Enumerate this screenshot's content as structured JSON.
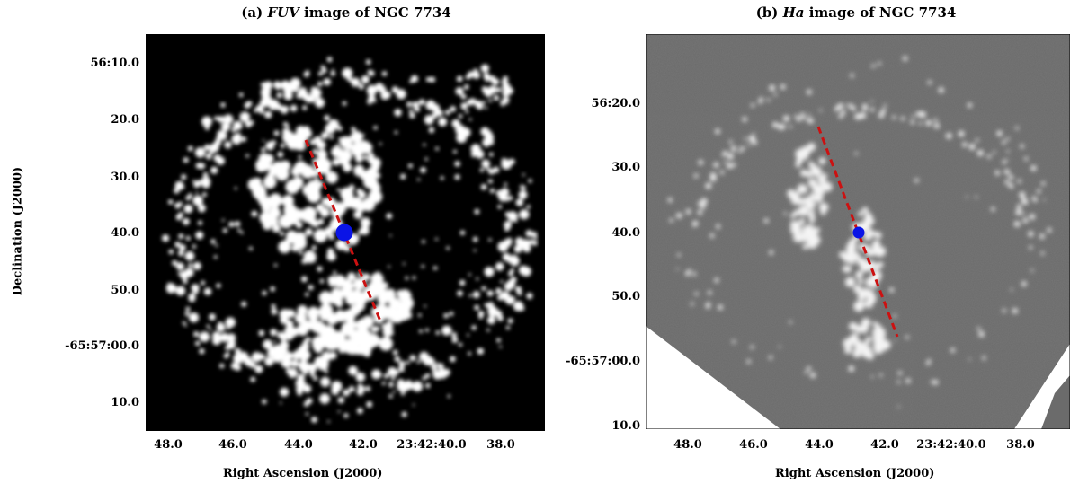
{
  "panel_a": {
    "title_prefix": "(a) ",
    "title_band": "FUV",
    "title_suffix": " image of NGC 7734",
    "y_ticks": [
      "56:10.0",
      "20.0",
      "30.0",
      "40.0",
      "50.0",
      "-65:57:00.0",
      "10.0"
    ],
    "x_ticks": [
      "48.0",
      "46.0",
      "44.0",
      "42.0",
      "23:42:40.0",
      "38.0"
    ],
    "xlabel": "Right Ascension (J2000)",
    "ylabel": "Declination (J2000)"
  },
  "panel_b": {
    "title_prefix": "(b) ",
    "title_band": "Ha",
    "title_suffix": " image of NGC 7734",
    "y_ticks": [
      "56:20.0",
      "30.0",
      "40.0",
      "50.0",
      "-65:57:00.0",
      "10.0"
    ],
    "x_ticks": [
      "48.0",
      "46.0",
      "44.0",
      "42.0",
      "23:42:40.0",
      "38.0"
    ],
    "xlabel": "Right Ascension (J2000)"
  },
  "colors": {
    "nucleus_marker": "#0a14e6",
    "slit_line": "#cc1111",
    "fuv_background": "#000000",
    "halpha_background": "#6b6b6b"
  }
}
